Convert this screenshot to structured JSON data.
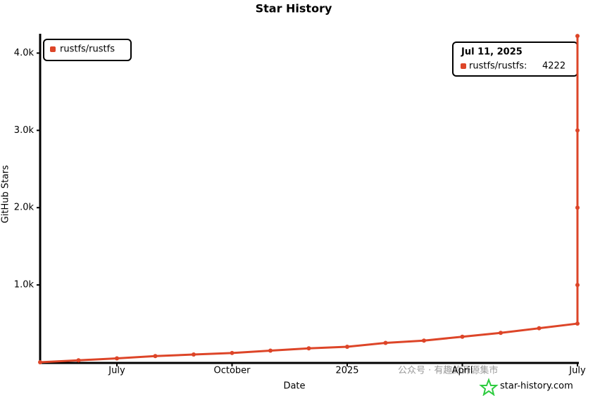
{
  "chart_data": {
    "type": "line",
    "title": "Star History",
    "x_label": "Date",
    "y_label": "GitHub Stars",
    "x": [
      "2024-05",
      "2024-06",
      "2024-07",
      "2024-08",
      "2024-09",
      "2024-10",
      "2024-11",
      "2024-12",
      "2025-01",
      "2025-02",
      "2025-03",
      "2025-04",
      "2025-05",
      "2025-06",
      "2025-07",
      "2025-07",
      "2025-07",
      "2025-07",
      "2025-07"
    ],
    "series": [
      {
        "name": "rustfs/rustfs",
        "color": "#dd4528",
        "values": [
          0,
          25,
          50,
          80,
          100,
          120,
          150,
          180,
          200,
          250,
          280,
          330,
          380,
          440,
          500,
          1000,
          2000,
          3000,
          4222
        ]
      }
    ],
    "xlim": [
      "2024-05",
      "2025-07"
    ],
    "xticks": [
      {
        "value": "2024-07",
        "label": "July"
      },
      {
        "value": "2024-10",
        "label": "October"
      },
      {
        "value": "2025-01",
        "label": "2025"
      },
      {
        "value": "2025-04",
        "label": "April"
      },
      {
        "value": "2025-07",
        "label": "July"
      }
    ],
    "ylim": [
      0,
      4250
    ],
    "yticks": [
      {
        "value": 1000,
        "label": "1.0k"
      },
      {
        "value": 2000,
        "label": "2.0k"
      },
      {
        "value": 3000,
        "label": "3.0k"
      },
      {
        "value": 4000,
        "label": "4.0k"
      }
    ],
    "legend": "top-left",
    "tooltip": {
      "title": "Jul 11, 2025",
      "label": "rustfs/rustfs:",
      "value": 4222
    },
    "watermark": "star-history.com",
    "watermark2": "公众号 · 有趣的开源集市"
  }
}
